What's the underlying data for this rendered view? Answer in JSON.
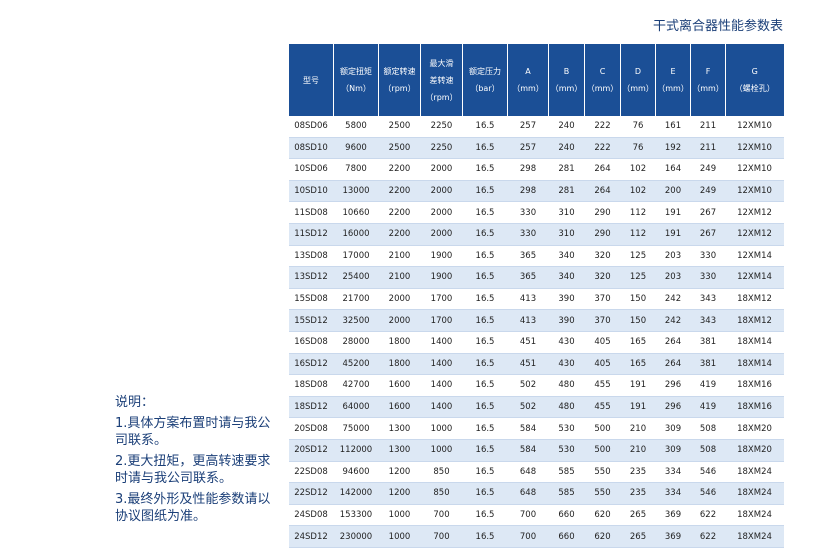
{
  "title": "干式离合器性能参数表",
  "table": {
    "header": [
      [
        "型号"
      ],
      [
        "额定扭矩",
        "（Nm）"
      ],
      [
        "额定转速",
        "（rpm）"
      ],
      [
        "最大滑",
        "差转速",
        "（rpm）"
      ],
      [
        "额定压力",
        "（bar）"
      ],
      [
        "A",
        "（mm）"
      ],
      [
        "B",
        "（mm）"
      ],
      [
        "C",
        "（mm）"
      ],
      [
        "D",
        "（mm）"
      ],
      [
        "E",
        "（mm）"
      ],
      [
        "F",
        "（mm）"
      ],
      [
        "G",
        "（螺栓孔）"
      ]
    ],
    "rows": [
      [
        "08SD06",
        5800,
        2500,
        2250,
        16.5,
        257,
        240,
        222,
        76,
        161,
        211,
        "12XM10"
      ],
      [
        "08SD10",
        9600,
        2500,
        2250,
        16.5,
        257,
        240,
        222,
        76,
        192,
        211,
        "12XM10"
      ],
      [
        "10SD06",
        7800,
        2200,
        2000,
        16.5,
        298,
        281,
        264,
        102,
        164,
        249,
        "12XM10"
      ],
      [
        "10SD10",
        13000,
        2200,
        2000,
        16.5,
        298,
        281,
        264,
        102,
        200,
        249,
        "12XM10"
      ],
      [
        "11SD08",
        10660,
        2200,
        2000,
        16.5,
        330,
        310,
        290,
        112,
        191,
        267,
        "12XM12"
      ],
      [
        "11SD12",
        16000,
        2200,
        2000,
        16.5,
        330,
        310,
        290,
        112,
        191,
        267,
        "12XM12"
      ],
      [
        "13SD08",
        17000,
        2100,
        1900,
        16.5,
        365,
        340,
        320,
        125,
        203,
        330,
        "12XM14"
      ],
      [
        "13SD12",
        25400,
        2100,
        1900,
        16.5,
        365,
        340,
        320,
        125,
        203,
        330,
        "12XM14"
      ],
      [
        "15SD08",
        21700,
        2000,
        1700,
        16.5,
        413,
        390,
        370,
        150,
        242,
        343,
        "18XM12"
      ],
      [
        "15SD12",
        32500,
        2000,
        1700,
        16.5,
        413,
        390,
        370,
        150,
        242,
        343,
        "18XM12"
      ],
      [
        "16SD08",
        28000,
        1800,
        1400,
        16.5,
        451,
        430,
        405,
        165,
        264,
        381,
        "18XM14"
      ],
      [
        "16SD12",
        45200,
        1800,
        1400,
        16.5,
        451,
        430,
        405,
        165,
        264,
        381,
        "18XM14"
      ],
      [
        "18SD08",
        42700,
        1600,
        1400,
        16.5,
        502,
        480,
        455,
        191,
        296,
        419,
        "18XM16"
      ],
      [
        "18SD12",
        64000,
        1600,
        1400,
        16.5,
        502,
        480,
        455,
        191,
        296,
        419,
        "18XM16"
      ],
      [
        "20SD08",
        75000,
        1300,
        1000,
        16.5,
        584,
        530,
        500,
        210,
        309,
        508,
        "18XM20"
      ],
      [
        "20SD12",
        112000,
        1300,
        1000,
        16.5,
        584,
        530,
        500,
        210,
        309,
        508,
        "18XM20"
      ],
      [
        "22SD08",
        94600,
        1200,
        850,
        16.5,
        648,
        585,
        550,
        235,
        334,
        546,
        "18XM24"
      ],
      [
        "22SD12",
        142000,
        1200,
        850,
        16.5,
        648,
        585,
        550,
        235,
        334,
        546,
        "18XM24"
      ],
      [
        "24SD08",
        153300,
        1000,
        700,
        16.5,
        700,
        660,
        620,
        265,
        369,
        622,
        "18XM24"
      ],
      [
        "24SD12",
        230000,
        1000,
        700,
        16.5,
        700,
        660,
        620,
        265,
        369,
        622,
        "18XM24"
      ]
    ]
  },
  "notes": {
    "heading": "说明：",
    "items": [
      "1.具体方案布置时请与我公司联系。",
      "2.更大扭矩，更高转速要求时请与我公司联系。",
      "3.最终外形及性能参数请以协议图纸为准。"
    ]
  }
}
